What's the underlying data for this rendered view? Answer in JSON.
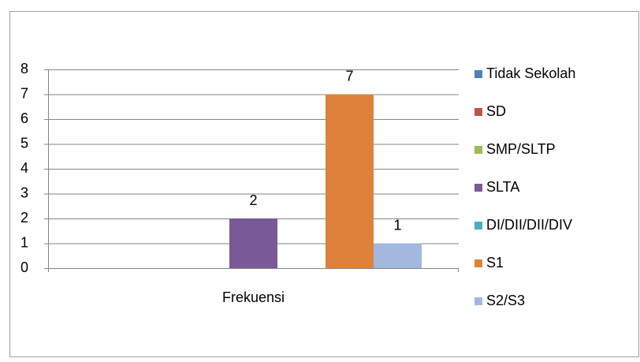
{
  "chart_data": {
    "type": "bar",
    "categories": [
      "Frekuensi"
    ],
    "series": [
      {
        "name": "Tidak Sekolah",
        "color": "#4f81bd",
        "values": [
          0
        ]
      },
      {
        "name": "SD",
        "color": "#c0504d",
        "values": [
          0
        ]
      },
      {
        "name": "SMP/SLTP",
        "color": "#9bbb59",
        "values": [
          0
        ]
      },
      {
        "name": "SLTA",
        "color": "#7a5a96",
        "values": [
          2
        ]
      },
      {
        "name": "DI/DII/DII/DIV",
        "color": "#4bacc6",
        "values": [
          0
        ]
      },
      {
        "name": "S1",
        "color": "#de823b",
        "values": [
          7
        ]
      },
      {
        "name": "S2/S3",
        "color": "#a2b8de",
        "values": [
          1
        ]
      }
    ],
    "ylim": [
      0,
      8
    ],
    "yticks": [
      0,
      1,
      2,
      3,
      4,
      5,
      6,
      7,
      8
    ],
    "grid": true,
    "legend": "right"
  }
}
